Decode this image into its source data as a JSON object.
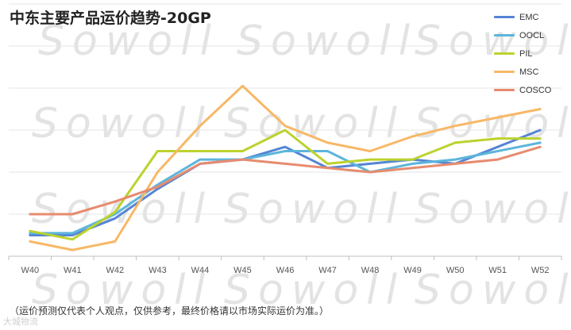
{
  "watermark_text": "Sowoll",
  "footnote": "（运价预测仅代表个人观点，仅供参考，最终价格请以市场实际运价为准。）",
  "brand_logo": "大城物流",
  "chart_data": {
    "type": "line",
    "title": "中东主要产品运价趋势-20GP",
    "xlabel": "",
    "ylabel": "",
    "ylim": [
      0,
      6
    ],
    "grid": true,
    "legend_position": "top-right",
    "categories": [
      "W40",
      "W41",
      "W42",
      "W43",
      "W44",
      "W45",
      "W46",
      "W47",
      "W48",
      "W49",
      "W50",
      "W51",
      "W52"
    ],
    "series": [
      {
        "name": "EMC",
        "color": "#5585d3",
        "values": [
          0.5,
          0.5,
          0.9,
          1.6,
          2.2,
          2.3,
          2.6,
          2.1,
          2.2,
          2.3,
          2.2,
          2.6,
          3.0
        ]
      },
      {
        "name": "OOCL",
        "color": "#5db5dc",
        "values": [
          0.55,
          0.55,
          1.0,
          1.7,
          2.3,
          2.3,
          2.5,
          2.5,
          2.0,
          2.2,
          2.3,
          2.5,
          2.7
        ]
      },
      {
        "name": "PIL",
        "color": "#bcd22e",
        "values": [
          0.6,
          0.4,
          1.05,
          2.5,
          2.5,
          2.5,
          3.0,
          2.2,
          2.3,
          2.3,
          2.7,
          2.8,
          2.8
        ]
      },
      {
        "name": "MSC",
        "color": "#f7b867",
        "values": [
          0.35,
          0.15,
          0.35,
          2.0,
          3.1,
          4.05,
          3.1,
          2.7,
          2.5,
          2.85,
          3.1,
          3.3,
          3.5
        ]
      },
      {
        "name": "COSCO",
        "color": "#e78b6e",
        "values": [
          1.0,
          1.0,
          1.3,
          1.65,
          2.2,
          2.3,
          2.2,
          2.1,
          2.0,
          2.1,
          2.2,
          2.3,
          2.6
        ]
      }
    ]
  }
}
